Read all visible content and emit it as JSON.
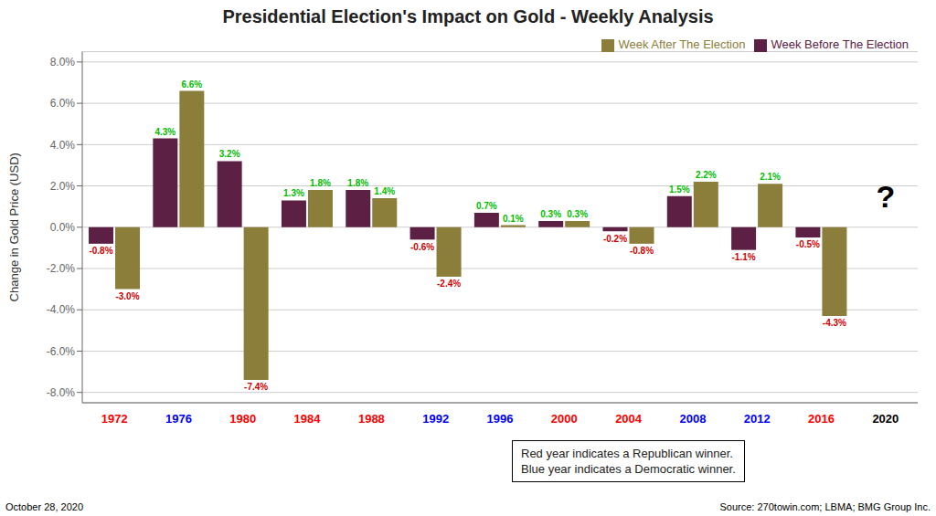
{
  "chart_data": {
    "type": "bar",
    "title": "Presidential Election's Impact on Gold - Weekly Analysis",
    "y_label": "Change in Gold Price (USD)",
    "categories": [
      "1972",
      "1976",
      "1980",
      "1984",
      "1988",
      "1992",
      "1996",
      "2000",
      "2004",
      "2008",
      "2012",
      "2016",
      "2020"
    ],
    "category_colors": [
      "red",
      "blue",
      "red",
      "red",
      "red",
      "blue",
      "blue",
      "red",
      "red",
      "blue",
      "blue",
      "red",
      "black"
    ],
    "series": [
      {
        "name": "Week Before The Election",
        "color": "#5c2044",
        "values": [
          -0.8,
          4.3,
          3.2,
          1.3,
          1.8,
          -0.6,
          0.7,
          0.3,
          -0.2,
          1.5,
          -1.1,
          -0.5,
          null
        ],
        "value_labels": [
          "-0.8%",
          "4.3%",
          "3.2%",
          "1.3%",
          "1.8%",
          "-0.6%",
          "0.7%",
          "0.3%",
          "-0.2%",
          "1.5%",
          "-1.1%",
          "-0.5%",
          null
        ],
        "value_label_colors": [
          "#cc0000",
          "#00bb00",
          "#00bb00",
          "#00bb00",
          "#00bb00",
          "#cc0000",
          "#00bb00",
          "#00bb00",
          "#cc0000",
          "#00bb00",
          "#cc0000",
          "#cc0000",
          null
        ]
      },
      {
        "name": "Week After The Election",
        "color": "#8b7d3a",
        "values": [
          -3.0,
          6.6,
          -7.4,
          1.8,
          1.4,
          -2.4,
          0.1,
          0.3,
          -0.8,
          2.2,
          2.1,
          -4.3,
          null
        ],
        "value_labels": [
          "-3.0%",
          "6.6%",
          "-7.4%",
          "1.8%",
          "1.4%",
          "-2.4%",
          "0.1%",
          "0.3%",
          "-0.8%",
          "2.2%",
          "2.1%",
          "-4.3%",
          null
        ],
        "value_label_colors": [
          "#cc0000",
          "#00bb00",
          "#cc0000",
          "#00bb00",
          "#00bb00",
          "#cc0000",
          "#00bb00",
          "#00bb00",
          "#cc0000",
          "#00bb00",
          "#00bb00",
          "#cc0000",
          null
        ]
      }
    ],
    "ylim": [
      -8.5,
      8.5
    ],
    "yticks": [
      {
        "value": -8.0,
        "label": "-8.0%"
      },
      {
        "value": -6.0,
        "label": "-6.0%"
      },
      {
        "value": -4.0,
        "label": "-4.0%"
      },
      {
        "value": -2.0,
        "label": "-2.0%"
      },
      {
        "value": 0.0,
        "label": "0.0%"
      },
      {
        "value": 2.0,
        "label": "2.0%"
      },
      {
        "value": 4.0,
        "label": "4.0%"
      },
      {
        "value": 6.0,
        "label": "6.0%"
      },
      {
        "value": 8.0,
        "label": "8.0%"
      }
    ],
    "grid": true,
    "legend": "upper right",
    "data_labels": true,
    "annotations": [
      {
        "text": "?",
        "x": "2020",
        "y": 1.5
      },
      {
        "text": "Red year indicates a Republican winner.\nBlue year indicates a Democratic winner."
      },
      {
        "text": "October 28, 2020"
      },
      {
        "text": "Source: 270towin.com; LBMA; BMG Group Inc."
      }
    ]
  }
}
